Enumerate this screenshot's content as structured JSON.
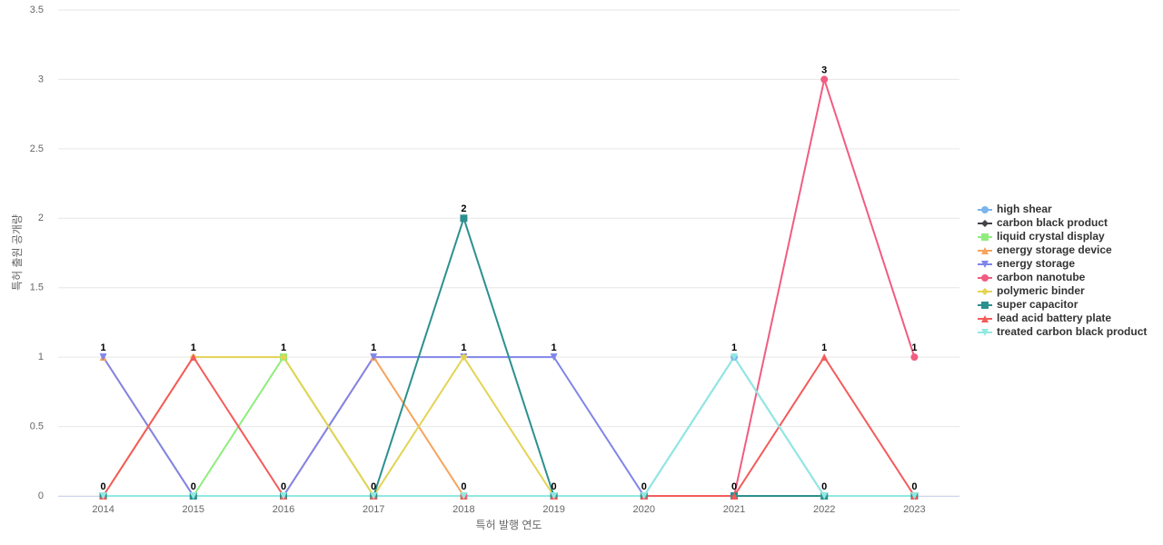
{
  "chart_data": {
    "type": "line",
    "x_label": "특허 발행 연도",
    "y_label": "특허 출원 공개량",
    "categories": [
      "2014",
      "2015",
      "2016",
      "2017",
      "2018",
      "2019",
      "2020",
      "2021",
      "2022",
      "2023"
    ],
    "series": [
      {
        "name": "high shear",
        "color": "#7cb5ec",
        "marker": "circle",
        "values": [
          0,
          0,
          0,
          0,
          0,
          0,
          0,
          1,
          0,
          0
        ]
      },
      {
        "name": "carbon black product",
        "color": "#434348",
        "marker": "diamond",
        "values": [
          0,
          0,
          0,
          0,
          0,
          0,
          0,
          0,
          0,
          0
        ]
      },
      {
        "name": "liquid crystal display",
        "color": "#90ed7d",
        "marker": "square",
        "values": [
          0,
          0,
          1,
          0,
          0,
          0,
          0,
          0,
          0,
          0
        ]
      },
      {
        "name": "energy storage device",
        "color": "#f7a35c",
        "marker": "triangle",
        "values": [
          1,
          0,
          0,
          1,
          0,
          0,
          0,
          0,
          0,
          0
        ]
      },
      {
        "name": "energy storage",
        "color": "#8085e9",
        "marker": "triangle-down",
        "values": [
          1,
          0,
          0,
          1,
          1,
          1,
          0,
          0,
          0,
          0
        ]
      },
      {
        "name": "carbon nanotube",
        "color": "#f15c80",
        "marker": "circle",
        "values": [
          0,
          0,
          0,
          0,
          0,
          0,
          0,
          0,
          3,
          1
        ]
      },
      {
        "name": "polymeric binder",
        "color": "#e4d354",
        "marker": "diamond",
        "values": [
          0,
          1,
          1,
          0,
          1,
          0,
          0,
          0,
          0,
          0
        ]
      },
      {
        "name": "super capacitor",
        "color": "#2b908f",
        "marker": "square",
        "values": [
          0,
          0,
          0,
          0,
          2,
          0,
          0,
          0,
          0,
          0
        ]
      },
      {
        "name": "lead acid battery plate",
        "color": "#f45b5b",
        "marker": "triangle",
        "values": [
          0,
          1,
          0,
          0,
          0,
          0,
          0,
          0,
          1,
          0
        ]
      },
      {
        "name": "treated carbon black product",
        "color": "#91e8e1",
        "marker": "triangle-down",
        "values": [
          0,
          0,
          0,
          0,
          0,
          0,
          0,
          1,
          0,
          0
        ]
      }
    ],
    "ylim": [
      0,
      3.5
    ],
    "yticks": [
      0,
      0.5,
      1,
      1.5,
      2,
      2.5,
      3,
      3.5
    ],
    "grid": true,
    "legend": "right"
  }
}
